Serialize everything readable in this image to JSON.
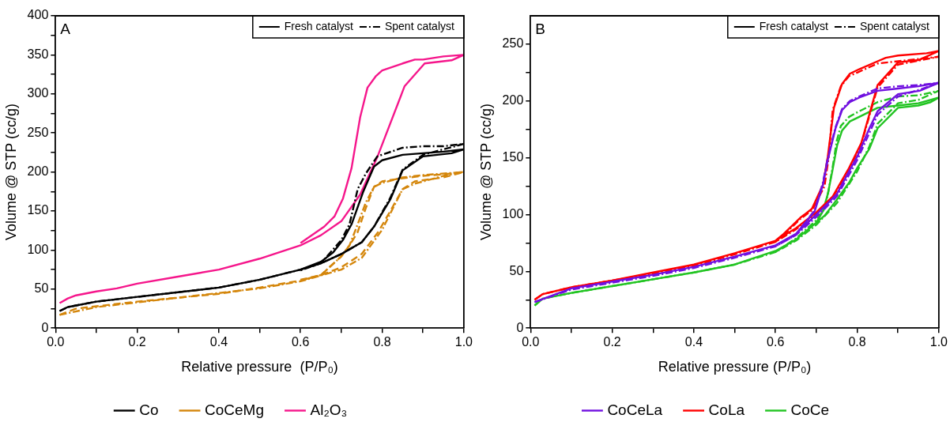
{
  "chart_data": [
    {
      "type": "line",
      "annotations": [
        "A",
        "Fresh catalyst",
        "Spent catalyst"
      ],
      "xlabel": "Relative pressure  (P/P₀)",
      "ylabel": "Volume @ STP (cc/g)",
      "xlim": [
        0,
        1
      ],
      "ylim": [
        0,
        400
      ],
      "xticks": [
        {
          "value": 0,
          "label": "0.0"
        },
        {
          "value": 0.1,
          "label": null
        },
        0.2,
        {
          "value": 0.3,
          "label": null
        },
        0.4,
        {
          "value": 0.5,
          "label": null
        },
        0.6,
        {
          "value": 0.7,
          "label": null
        },
        0.8,
        {
          "value": 0.9,
          "label": null
        },
        {
          "value": 1,
          "label": "1.0"
        }
      ],
      "yticks": [
        0,
        {
          "value": 25,
          "label": null
        },
        50,
        {
          "value": 75,
          "label": null
        },
        100,
        {
          "value": 125,
          "label": null
        },
        150,
        {
          "value": 175,
          "label": null
        },
        200,
        {
          "value": 225,
          "label": null
        },
        250,
        {
          "value": 275,
          "label": null
        },
        300,
        {
          "value": 325,
          "label": null
        },
        350,
        {
          "value": 375,
          "label": null
        },
        400
      ],
      "legend": "bottom",
      "marker": "none",
      "series": [
        {
          "name": "Co",
          "color": "#000000",
          "line_style": "solid",
          "x": [
            0.01,
            0.03,
            0.1,
            0.2,
            0.3,
            0.4,
            0.5,
            0.6,
            0.65,
            0.7,
            0.75,
            0.78,
            0.82,
            0.85,
            0.9,
            0.97,
            1.0,
            0.95,
            0.9,
            0.85,
            0.8,
            0.78,
            0.753,
            0.725,
            0.704,
            0.68,
            0.65,
            0.6
          ],
          "values": [
            22,
            27,
            34,
            40,
            46,
            52,
            62,
            75,
            83,
            95,
            110,
            130,
            165,
            202,
            220,
            224,
            229,
            226,
            224,
            222,
            215,
            207,
            174,
            133,
            113,
            97,
            85,
            75
          ]
        },
        {
          "color": "#000000",
          "line_style": "dashdot",
          "x": [
            0.01,
            0.03,
            0.1,
            0.2,
            0.3,
            0.4,
            0.5,
            0.6,
            0.65,
            0.7,
            0.75,
            0.78,
            0.82,
            0.85,
            0.9,
            1.0,
            0.95,
            0.9,
            0.85,
            0.788,
            0.76,
            0.74,
            0.72,
            0.7,
            0.65,
            0.6
          ],
          "values": [
            22,
            27,
            34,
            40,
            46,
            52,
            62,
            75,
            83,
            95,
            110,
            130,
            167,
            203,
            222,
            236,
            233,
            233,
            231,
            220,
            198,
            178,
            133,
            113,
            83,
            74
          ]
        },
        {
          "name": "CoCeMg",
          "color": "#d4860b",
          "line_style": "dashed",
          "x": [
            0.01,
            0.05,
            0.1,
            0.2,
            0.3,
            0.4,
            0.5,
            0.6,
            0.65,
            0.7,
            0.75,
            0.79,
            0.82,
            0.85,
            0.88,
            0.95,
            1.0,
            0.95,
            0.9,
            0.85,
            0.8,
            0.78,
            0.76,
            0.74,
            0.72,
            0.7,
            0.65,
            0.6
          ],
          "values": [
            17,
            25,
            28,
            34,
            39,
            44,
            52,
            61,
            68,
            78,
            95,
            123,
            150,
            178,
            188,
            193,
            200,
            197,
            195,
            192,
            188,
            181,
            154,
            123,
            106,
            92,
            68,
            62
          ]
        },
        {
          "color": "#d4860b",
          "line_style": "dashdot",
          "x": [
            0.01,
            0.1,
            0.3,
            0.5,
            0.6,
            0.7,
            0.75,
            0.8,
            0.82,
            0.85,
            0.88,
            0.95,
            1.0,
            0.9,
            0.85,
            0.8,
            0.78,
            0.76,
            0.74,
            0.72,
            0.7,
            0.65,
            0.6
          ],
          "values": [
            17,
            27,
            39,
            51,
            60,
            75,
            90,
            126,
            147,
            178,
            185,
            195,
            200,
            196,
            193,
            186,
            181,
            161,
            133,
            106,
            92,
            68,
            61
          ]
        },
        {
          "name": "Al₂O₃",
          "color": "#f5168b",
          "line_style": "solid",
          "x": [
            0.01,
            0.03,
            0.05,
            0.1,
            0.15,
            0.2,
            0.3,
            0.4,
            0.5,
            0.6,
            0.65,
            0.7,
            0.746,
            0.788,
            0.855,
            0.904,
            0.97,
            1.0,
            0.95,
            0.9,
            0.88,
            0.85,
            0.8,
            0.785,
            0.764,
            0.746,
            0.725,
            0.704,
            0.683,
            0.658,
            0.6
          ],
          "values": [
            32,
            38,
            42,
            47,
            51,
            57,
            66,
            75,
            89,
            106,
            119,
            137,
            171,
            219,
            310,
            339,
            343,
            350,
            348,
            344,
            344,
            339,
            330,
            323,
            308,
            270,
            205,
            166,
            143,
            130,
            109
          ]
        }
      ]
    },
    {
      "type": "line",
      "annotations": [
        "B",
        "Fresh catalyst",
        "Spent catalyst"
      ],
      "xlabel": "Relative pressure (P/P₀)",
      "ylabel": "Volume @ STP (cc/g)",
      "xlim": [
        0,
        1
      ],
      "ylim": [
        0,
        275
      ],
      "xticks": [
        {
          "value": 0,
          "label": "0.0"
        },
        {
          "value": 0.1,
          "label": null
        },
        0.2,
        {
          "value": 0.3,
          "label": null
        },
        0.4,
        {
          "value": 0.5,
          "label": null
        },
        0.6,
        {
          "value": 0.7,
          "label": null
        },
        0.8,
        {
          "value": 0.9,
          "label": null
        },
        {
          "value": 1,
          "label": "1.0"
        }
      ],
      "yticks": [
        0,
        {
          "value": 25,
          "label": null
        },
        50,
        {
          "value": 75,
          "label": null
        },
        100,
        {
          "value": 125,
          "label": null
        },
        150,
        {
          "value": 175,
          "label": null
        },
        200,
        {
          "value": 225,
          "label": null
        },
        250
      ],
      "legend": "bottom",
      "marker": "none",
      "series": [
        {
          "name": "CoCeLa",
          "color": "#7010e0",
          "line_style": "solid",
          "x": [
            0.01,
            0.1,
            0.2,
            0.3,
            0.4,
            0.5,
            0.6,
            0.65,
            0.7,
            0.72,
            0.75,
            0.78,
            0.8,
            0.83,
            0.85,
            0.9,
            0.953,
            1.0,
            0.95,
            0.9,
            0.85,
            0.805,
            0.782,
            0.763,
            0.747,
            0.728,
            0.716,
            0.696,
            0.65,
            0.6
          ],
          "values": [
            23,
            35,
            41,
            47,
            54,
            63,
            73,
            83,
            100,
            107,
            118,
            138,
            151,
            176,
            191,
            206,
            209,
            216,
            213,
            211,
            209,
            203,
            199,
            192,
            176,
            148,
            126,
            103,
            83,
            73
          ]
        },
        {
          "color": "#7010e0",
          "line_style": "dashdot",
          "x": [
            0.01,
            0.1,
            0.2,
            0.3,
            0.4,
            0.5,
            0.6,
            0.65,
            0.7,
            0.72,
            0.75,
            0.78,
            0.8,
            0.83,
            0.85,
            0.9,
            0.953,
            1.0,
            0.95,
            0.9,
            0.85,
            0.805,
            0.782,
            0.763,
            0.747,
            0.728,
            0.716,
            0.696,
            0.65,
            0.6
          ],
          "values": [
            23,
            34,
            40,
            46,
            53,
            62,
            72,
            82,
            98,
            105,
            116,
            135,
            148,
            172,
            188,
            204,
            210,
            216,
            214,
            213,
            211,
            204,
            200,
            193,
            177,
            150,
            128,
            104,
            82,
            72
          ]
        },
        {
          "name": "CoLa",
          "color": "#ff0000",
          "line_style": "solid",
          "x": [
            0.01,
            0.03,
            0.1,
            0.2,
            0.3,
            0.4,
            0.5,
            0.6,
            0.65,
            0.7,
            0.74,
            0.78,
            0.81,
            0.85,
            0.9,
            0.95,
            1.0,
            0.97,
            0.9,
            0.87,
            0.85,
            0.805,
            0.782,
            0.763,
            0.743,
            0.728,
            0.716,
            0.689,
            0.66,
            0.62,
            0.6
          ],
          "values": [
            25,
            30,
            36,
            42,
            49,
            56,
            66,
            77,
            88,
            102,
            116,
            141,
            163,
            214,
            234,
            236,
            244,
            242,
            240,
            238,
            235,
            228,
            224,
            215,
            194,
            151,
            126,
            105,
            97,
            83,
            77
          ]
        },
        {
          "color": "#ff0000",
          "line_style": "dashdot",
          "x": [
            0.01,
            0.03,
            0.1,
            0.2,
            0.3,
            0.4,
            0.5,
            0.6,
            0.65,
            0.7,
            0.74,
            0.78,
            0.81,
            0.85,
            0.9,
            1.0,
            0.95,
            0.9,
            0.85,
            0.8,
            0.78,
            0.76,
            0.74,
            0.73,
            0.72,
            0.69,
            0.66,
            0.62,
            0.6
          ],
          "values": [
            25,
            30,
            36,
            42,
            48,
            55,
            65,
            76,
            87,
            101,
            115,
            140,
            162,
            212,
            232,
            239,
            237,
            235,
            233,
            225,
            222,
            213,
            192,
            150,
            125,
            104,
            96,
            82,
            76
          ]
        },
        {
          "name": "CoCe",
          "color": "#22c422",
          "line_style": "solid",
          "x": [
            0.01,
            0.03,
            0.1,
            0.2,
            0.3,
            0.4,
            0.5,
            0.6,
            0.65,
            0.7,
            0.72,
            0.75,
            0.78,
            0.8,
            0.83,
            0.85,
            0.9,
            0.95,
            0.98,
            1.0,
            0.95,
            0.9,
            0.85,
            0.805,
            0.782,
            0.763,
            0.751,
            0.739,
            0.728,
            0.716,
            0.7,
            0.65,
            0.6
          ],
          "values": [
            20,
            26,
            31,
            37,
            43,
            49,
            56,
            68,
            78,
            93,
            99,
            113,
            128,
            141,
            158,
            176,
            194,
            196,
            199,
            203,
            198,
            196,
            194,
            186,
            182,
            174,
            161,
            138,
            118,
            103,
            93,
            78,
            68
          ]
        },
        {
          "color": "#22c422",
          "line_style": "dashdot",
          "x": [
            0.01,
            0.03,
            0.1,
            0.2,
            0.3,
            0.4,
            0.5,
            0.6,
            0.65,
            0.7,
            0.75,
            0.8,
            0.83,
            0.85,
            0.9,
            0.95,
            1.0,
            0.95,
            0.9,
            0.85,
            0.8,
            0.78,
            0.76,
            0.75,
            0.74,
            0.73,
            0.72,
            0.7,
            0.65,
            0.6
          ],
          "values": [
            20,
            26,
            31,
            37,
            43,
            49,
            56,
            67,
            77,
            91,
            110,
            138,
            160,
            180,
            198,
            201,
            209,
            205,
            204,
            199,
            190,
            186,
            178,
            165,
            142,
            121,
            105,
            95,
            79,
            67
          ]
        }
      ]
    }
  ]
}
